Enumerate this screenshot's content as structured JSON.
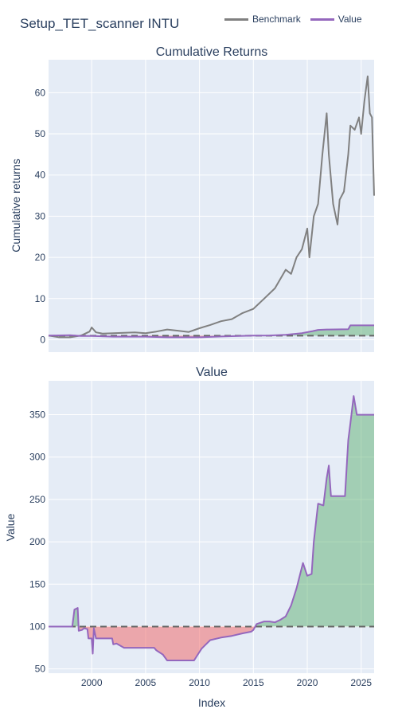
{
  "figure": {
    "title": "Setup_TET_scanner INTU",
    "legend": [
      {
        "name": "Benchmark",
        "color": "#808080"
      },
      {
        "name": "Value",
        "color": "#9467bd"
      }
    ]
  },
  "chart_data": [
    {
      "type": "line",
      "title": "Cumulative Returns",
      "xlabel": "",
      "ylabel": "Cumulative returns",
      "xlim": [
        1996.0,
        2026.2
      ],
      "ylim": [
        -3,
        68
      ],
      "yticks": [
        0,
        10,
        20,
        30,
        40,
        50,
        60
      ],
      "xticks": [
        2000,
        2005,
        2010,
        2015,
        2020,
        2025
      ],
      "baseline": 1,
      "series": [
        {
          "name": "Benchmark",
          "color": "#808080",
          "x": [
            1996.0,
            1997.0,
            1998.0,
            1999.0,
            1999.8,
            2000.0,
            2000.4,
            2001.0,
            2002.0,
            2003.0,
            2004.0,
            2005.0,
            2006.0,
            2007.0,
            2008.0,
            2009.0,
            2010.0,
            2011.0,
            2012.0,
            2013.0,
            2014.0,
            2015.0,
            2016.0,
            2017.0,
            2018.0,
            2018.5,
            2019.0,
            2019.5,
            2020.0,
            2020.2,
            2020.6,
            2021.0,
            2021.4,
            2021.8,
            2022.0,
            2022.4,
            2022.8,
            2023.0,
            2023.4,
            2023.8,
            2024.0,
            2024.4,
            2024.8,
            2025.0,
            2025.3,
            2025.6,
            2025.8,
            2026.0,
            2026.2
          ],
          "values": [
            1.0,
            0.6,
            0.6,
            1.0,
            2.0,
            3.0,
            1.8,
            1.5,
            1.6,
            1.7,
            1.8,
            1.6,
            2.0,
            2.5,
            2.2,
            1.9,
            2.8,
            3.6,
            4.5,
            5.0,
            6.5,
            7.5,
            10.0,
            12.5,
            17.0,
            16.0,
            20.0,
            22.0,
            27.0,
            20.0,
            30.0,
            33.0,
            45.0,
            55.0,
            45.0,
            33.0,
            28.0,
            34.0,
            36.0,
            45.0,
            52.0,
            51.0,
            54.0,
            50.0,
            58.0,
            64.0,
            55.0,
            54.0,
            35.0
          ]
        },
        {
          "name": "Value",
          "color": "#9467bd",
          "x": [
            1996.0,
            1998.0,
            1999.0,
            2000.0,
            2002.0,
            2005.0,
            2007.0,
            2010.0,
            2012.0,
            2015.0,
            2016.5,
            2018.0,
            2019.5,
            2020.5,
            2021.0,
            2021.8,
            2022.0,
            2023.8,
            2024.0,
            2026.2
          ],
          "values": [
            1.0,
            1.1,
            0.9,
            0.9,
            0.75,
            0.75,
            0.6,
            0.6,
            0.8,
            1.0,
            1.05,
            1.2,
            1.6,
            2.1,
            2.4,
            2.5,
            2.5,
            2.55,
            3.5,
            3.5
          ]
        }
      ]
    },
    {
      "type": "line",
      "title": "Value",
      "xlabel": "Index",
      "ylabel": "Value",
      "xlim": [
        1996.0,
        2026.2
      ],
      "ylim": [
        45,
        390
      ],
      "yticks": [
        50,
        100,
        150,
        200,
        250,
        300,
        350
      ],
      "xticks": [
        2000,
        2005,
        2010,
        2015,
        2020,
        2025
      ],
      "baseline": 100,
      "series": [
        {
          "name": "Value",
          "color": "#9467bd",
          "x": [
            1996.0,
            1998.2,
            1998.4,
            1998.7,
            1998.8,
            1999.1,
            1999.3,
            1999.6,
            1999.7,
            2000.0,
            2000.1,
            2000.2,
            2000.4,
            2001.9,
            2002.0,
            2002.3,
            2003.0,
            2005.8,
            2006.0,
            2006.6,
            2007.0,
            2009.5,
            2009.9,
            2010.2,
            2010.6,
            2011.0,
            2012.0,
            2013.0,
            2014.0,
            2014.8,
            2015.0,
            2015.3,
            2016.0,
            2016.5,
            2017.0,
            2017.5,
            2018.0,
            2018.5,
            2019.0,
            2019.6,
            2020.0,
            2020.4,
            2020.6,
            2021.0,
            2021.5,
            2021.8,
            2022.0,
            2022.2,
            2023.5,
            2023.8,
            2024.0,
            2024.3,
            2024.6,
            2026.2
          ],
          "values": [
            100,
            100,
            120,
            122,
            95,
            96,
            98,
            97,
            86,
            86,
            68,
            98,
            86,
            86,
            79,
            80,
            75,
            75,
            72,
            67,
            60,
            60,
            68,
            74,
            79,
            84,
            87,
            89,
            92,
            94,
            96,
            103,
            106,
            106,
            105,
            108,
            112,
            125,
            145,
            175,
            160,
            162,
            200,
            245,
            243,
            275,
            290,
            254,
            254,
            320,
            340,
            372,
            350,
            350
          ]
        }
      ]
    }
  ]
}
